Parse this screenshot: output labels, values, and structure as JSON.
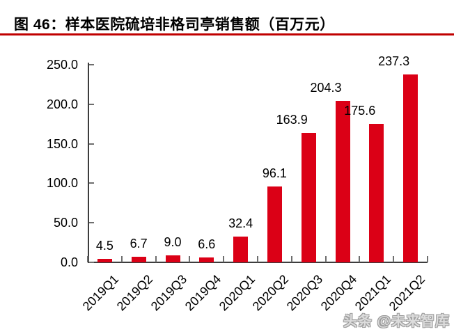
{
  "header": {
    "title": "图 46：样本医院硫培非格司亭销售额（百万元）"
  },
  "page": {
    "watermark": "头条 @未来智库"
  },
  "colors": {
    "bar": "#DB0016",
    "title_rule": "#C00000",
    "axis": "#3d3d3d",
    "tick": "#6e6e6e"
  },
  "chart_data": {
    "type": "bar",
    "title": "图 46：样本医院硫培非格司亭销售额（百万元）",
    "categories": [
      "2019Q1",
      "2019Q2",
      "2019Q3",
      "2019Q4",
      "2020Q1",
      "2020Q2",
      "2020Q3",
      "2020Q4",
      "2021Q1",
      "2021Q2"
    ],
    "values": [
      4.5,
      6.7,
      9.0,
      6.6,
      32.4,
      96.1,
      163.9,
      204.3,
      175.6,
      237.3
    ],
    "data_labels": [
      "4.5",
      "6.7",
      "9.0",
      "6.6",
      "32.4",
      "96.1",
      "163.9",
      "204.3",
      "175.6",
      "237.3"
    ],
    "xlabel": "",
    "ylabel": "",
    "ylim": [
      0,
      250
    ],
    "ytick_interval": 50,
    "ytick_labels": [
      "0.0",
      "50.0",
      "100.0",
      "150.0",
      "200.0",
      "250.0"
    ],
    "grid": false,
    "legend": false,
    "bar_color": "#DB0016",
    "units": "百万元"
  }
}
